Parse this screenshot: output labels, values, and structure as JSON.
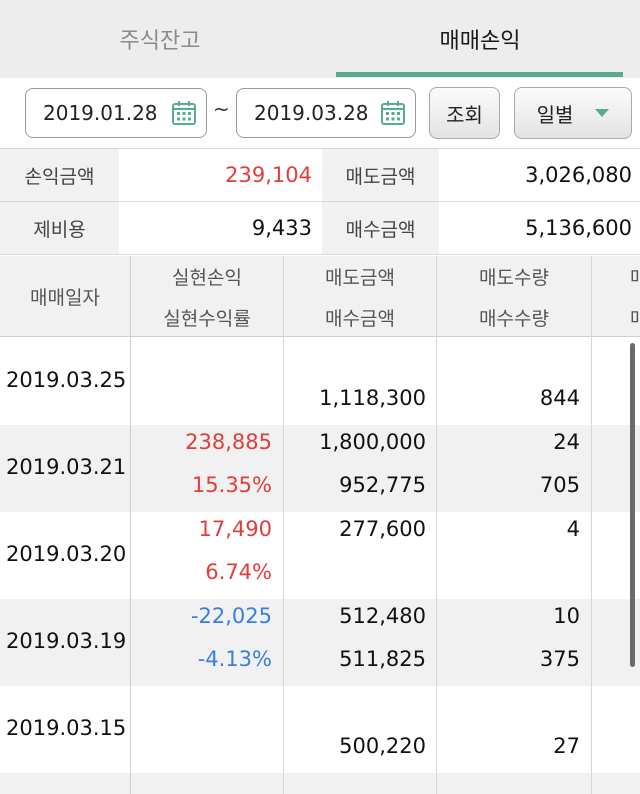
{
  "tabs": {
    "stock_balance": "주식잔고",
    "trade_pnl": "매매손익"
  },
  "filter": {
    "date_from": "2019.01.28",
    "tilde": "~",
    "date_to": "2019.03.28",
    "query_button": "조회",
    "period_select": "일별"
  },
  "summary": {
    "pnl_label": "손익금액",
    "pnl_value": "239,104",
    "sell_amount_label": "매도금액",
    "sell_amount_value": "3,026,080",
    "fees_label": "제비용",
    "fees_value": "9,433",
    "buy_amount_label": "매수금액",
    "buy_amount_value": "5,136,600"
  },
  "table": {
    "headers": {
      "trade_date": "매매일자",
      "realized_pnl": "실현손익",
      "realized_return": "실현수익률",
      "sell_amount": "매도금액",
      "buy_amount": "매수금액",
      "sell_qty": "매도수량",
      "buy_qty": "매수수량",
      "next_col_top": "매",
      "next_col_bottom": "매"
    },
    "rows": [
      {
        "date": "2019.03.25",
        "pnl": "",
        "rate": "",
        "sell_amount": "",
        "buy_amount": "1,118,300",
        "sell_qty": "",
        "buy_qty": "844"
      },
      {
        "date": "2019.03.21",
        "pnl": "238,885",
        "rate": "15.35%",
        "sell_amount": "1,800,000",
        "buy_amount": "952,775",
        "sell_qty": "24",
        "buy_qty": "705"
      },
      {
        "date": "2019.03.20",
        "pnl": "17,490",
        "rate": "6.74%",
        "sell_amount": "277,600",
        "buy_amount": "",
        "sell_qty": "4",
        "buy_qty": ""
      },
      {
        "date": "2019.03.19",
        "pnl": "-22,025",
        "rate": "-4.13%",
        "sell_amount": "512,480",
        "buy_amount": "511,825",
        "sell_qty": "10",
        "buy_qty": "375"
      },
      {
        "date": "2019.03.15",
        "pnl": "",
        "rate": "",
        "sell_amount": "",
        "buy_amount": "500,220",
        "sell_qty": "",
        "buy_qty": "27"
      }
    ]
  },
  "colors": {
    "accent": "#56ac8e",
    "profit": "#e23d3a",
    "loss": "#3a7de5",
    "header_bg": "#f1f1f1"
  },
  "icons": {
    "calendar": "calendar-icon",
    "dropdown": "chevron-down-icon"
  }
}
